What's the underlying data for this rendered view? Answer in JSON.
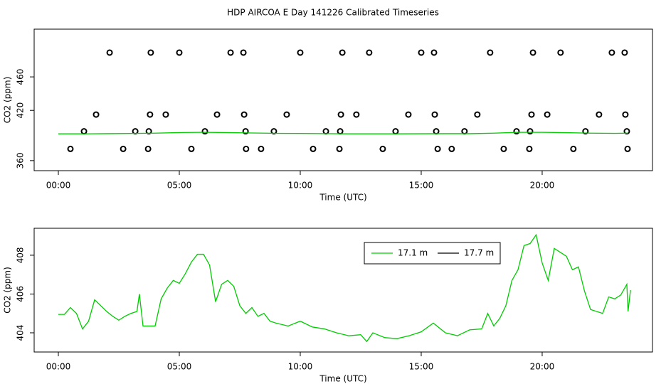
{
  "title": "HDP AIRCOA E  Day 141226  Calibrated Timeseries",
  "chart_data": [
    {
      "type": "scatter",
      "x_label": "Time (UTC)",
      "y_label": "CO2 (ppm)",
      "xlim": [
        -1,
        24.56
      ],
      "ylim": [
        348,
        517
      ],
      "xticks": [
        {
          "value": 0,
          "label": "00:00"
        },
        {
          "value": 5,
          "label": "05:00"
        },
        {
          "value": 10,
          "label": "10:00"
        },
        {
          "value": 15,
          "label": "15:00"
        },
        {
          "value": 20,
          "label": "20:00"
        }
      ],
      "yticks": [
        360,
        420,
        460
      ],
      "series": [
        {
          "type": "scatter",
          "color": "#000000",
          "x": [
            2.12,
            3.82,
            5.0,
            7.12,
            7.65,
            10.0,
            11.74,
            12.85,
            15.0,
            15.53,
            17.85,
            19.62,
            20.76,
            22.88,
            23.41,
            1.56,
            3.79,
            4.44,
            6.56,
            7.68,
            9.44,
            11.68,
            12.32,
            14.47,
            15.56,
            17.32,
            19.56,
            20.21,
            22.35,
            23.44,
            1.06,
            3.18,
            3.74,
            6.06,
            7.74,
            8.91,
            11.06,
            11.65,
            13.94,
            15.62,
            16.79,
            18.94,
            19.5,
            21.79,
            23.5,
            0.5,
            2.68,
            3.71,
            5.5,
            7.76,
            8.38,
            10.53,
            11.62,
            13.41,
            15.68,
            16.26,
            18.41,
            19.47,
            21.29,
            23.53
          ],
          "values": [
            489,
            489,
            489,
            489,
            489,
            489,
            489,
            489,
            489,
            489,
            489,
            489,
            489,
            489,
            489,
            415,
            415,
            415,
            415,
            415,
            415,
            415,
            415,
            415,
            415,
            415,
            415,
            415,
            415,
            415,
            395,
            395,
            395,
            395,
            395,
            395,
            395,
            395,
            395,
            395,
            395,
            395,
            395,
            395,
            395,
            374,
            374,
            374,
            374,
            374,
            374,
            374,
            374,
            374,
            374,
            374,
            374,
            374,
            374,
            374
          ]
        },
        {
          "type": "line",
          "color": "#00cc00",
          "x": [
            0,
            1,
            2,
            3,
            4,
            5,
            6,
            7,
            8,
            9,
            10,
            11,
            12,
            13,
            14,
            15,
            16,
            17,
            18,
            19,
            20,
            21,
            22,
            23,
            23.55
          ],
          "values": [
            392,
            392,
            392.2,
            392.5,
            392.8,
            393.5,
            393.8,
            393.5,
            393,
            392.6,
            392.5,
            392.3,
            392,
            392,
            392,
            392.1,
            392.2,
            392.2,
            392.8,
            393.8,
            393.8,
            393.4,
            392.8,
            392.6,
            392.8
          ]
        }
      ]
    },
    {
      "type": "line",
      "x_label": "Time (UTC)",
      "y_label": "CO2 (ppm)",
      "xlim": [
        -1,
        24.56
      ],
      "ylim": [
        403.01,
        409.39
      ],
      "xticks": [
        {
          "value": 0,
          "label": "00:00"
        },
        {
          "value": 5,
          "label": "05:00"
        },
        {
          "value": 10,
          "label": "10:00"
        },
        {
          "value": 15,
          "label": "15:00"
        },
        {
          "value": 20,
          "label": "20:00"
        }
      ],
      "yticks": [
        404,
        406,
        408
      ],
      "legend": "top-right",
      "series": [
        {
          "name": "17.1 m",
          "color": "#00cc00",
          "x": [
            0,
            0.25,
            0.5,
            0.75,
            1,
            1.25,
            1.5,
            1.75,
            2,
            2.25,
            2.5,
            2.75,
            3,
            3.25,
            3.35,
            3.5,
            4,
            4.25,
            4.5,
            4.75,
            5,
            5.25,
            5.5,
            5.75,
            6,
            6.25,
            6.5,
            6.75,
            7,
            7.25,
            7.5,
            7.75,
            8,
            8.25,
            8.5,
            8.75,
            9,
            9.5,
            10,
            10.5,
            11,
            11.5,
            12,
            12.5,
            12.75,
            13,
            13.5,
            14,
            14.5,
            15,
            15.5,
            16,
            16.5,
            17,
            17.5,
            17.75,
            18,
            18.25,
            18.5,
            18.75,
            19,
            19.25,
            19.5,
            19.75,
            20,
            20.25,
            20.5,
            20.75,
            21,
            21.25,
            21.5,
            21.75,
            22,
            22.5,
            22.75,
            23,
            23.25,
            23.5,
            23.55,
            23.65
          ],
          "values": [
            404.95,
            404.95,
            405.3,
            405.0,
            404.2,
            404.6,
            405.7,
            405.4,
            405.1,
            404.85,
            404.65,
            404.85,
            405.0,
            405.1,
            406.0,
            404.35,
            404.35,
            405.75,
            406.3,
            406.7,
            406.55,
            407.05,
            407.65,
            408.05,
            408.05,
            407.5,
            405.6,
            406.5,
            406.7,
            406.4,
            405.4,
            405.0,
            405.3,
            404.85,
            405.0,
            404.6,
            404.5,
            404.35,
            404.6,
            404.3,
            404.2,
            404.0,
            403.85,
            403.9,
            403.55,
            404.0,
            403.75,
            403.7,
            403.85,
            404.05,
            404.5,
            404.0,
            403.85,
            404.15,
            404.2,
            405.0,
            404.35,
            404.75,
            405.4,
            406.7,
            407.25,
            408.5,
            408.6,
            409.05,
            407.6,
            406.7,
            408.35,
            408.15,
            407.95,
            407.25,
            407.4,
            406.15,
            405.2,
            405.0,
            405.85,
            405.75,
            405.95,
            406.5,
            405.1,
            406.2
          ]
        },
        {
          "name": "17.7 m",
          "color": "#000000",
          "x": [
            0,
            23.65
          ],
          "values": [
            null,
            null
          ]
        }
      ]
    }
  ]
}
